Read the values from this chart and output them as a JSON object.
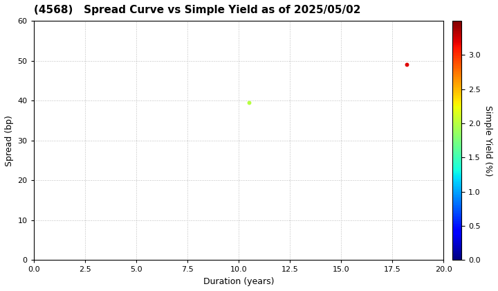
{
  "title": "(4568)   Spread Curve vs Simple Yield as of 2025/05/02",
  "xlabel": "Duration (years)",
  "ylabel": "Spread (bp)",
  "colorbar_label": "Simple Yield (%)",
  "xlim": [
    0.0,
    20.0
  ],
  "ylim": [
    0,
    60
  ],
  "xticks": [
    0.0,
    2.5,
    5.0,
    7.5,
    10.0,
    12.5,
    15.0,
    17.5,
    20.0
  ],
  "yticks": [
    0,
    10,
    20,
    30,
    40,
    50,
    60
  ],
  "colorbar_ticks": [
    0.0,
    0.5,
    1.0,
    1.5,
    2.0,
    2.5,
    3.0
  ],
  "colorbar_range": [
    0.0,
    3.5
  ],
  "points": [
    {
      "duration": 10.5,
      "spread": 39.5,
      "simple_yield": 2.0
    },
    {
      "duration": 18.2,
      "spread": 49.0,
      "simple_yield": 3.2
    }
  ],
  "marker_size": 18,
  "grid_color": "#bbbbbb",
  "grid_linestyle": "dotted",
  "background_color": "#ffffff",
  "title_fontsize": 11,
  "axis_fontsize": 9,
  "tick_fontsize": 8,
  "colorbar_fontsize": 9
}
